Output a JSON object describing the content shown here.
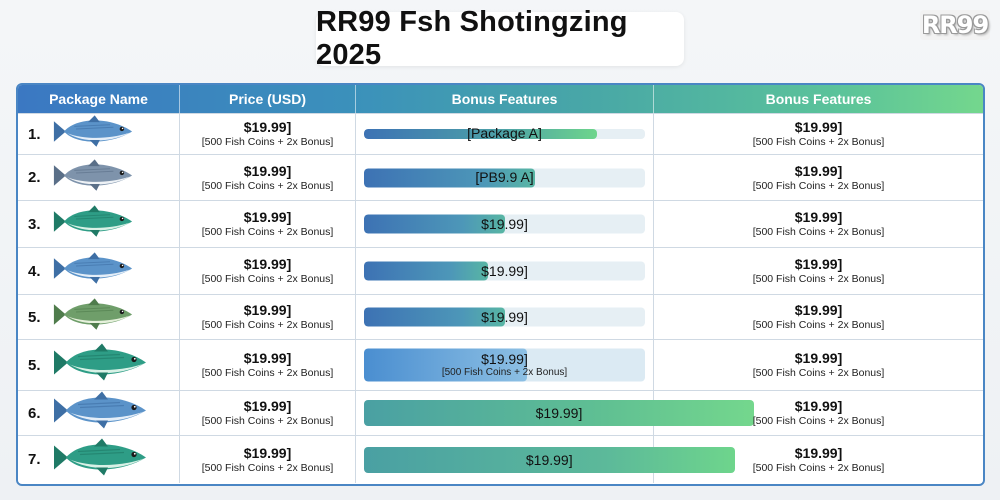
{
  "title": "RR99 Fsh Shotingzing 2025",
  "logo": "RR99",
  "colors": {
    "header_start": "#3b78c2",
    "header_end": "#74d78d",
    "bar_blue": "#3d72b4",
    "bar_teal": "#4aa0a3",
    "bar_green": "#6ed58c"
  },
  "headers": [
    "Package Name",
    "Price (USD)",
    "Bonus Features",
    "Bonus Features"
  ],
  "rows": [
    {
      "num": "1.",
      "fish": "blue-tuna-icon",
      "price": "$19.99]",
      "price_sub": "[500 Fish Coins + 2x Bonus]",
      "bonus_label": "[Package A]",
      "bonus_sub": "",
      "bonus_fill": 0.83,
      "bonus_style": "thin",
      "col4_price": "$19.99]",
      "col4_sub": "[500 Fish Coins + 2x Bonus]"
    },
    {
      "num": "2.",
      "fish": "gray-tuna-icon",
      "price": "$19.99]",
      "price_sub": "[500 Fish Coins + 2x Bonus]",
      "bonus_label": "[PB9.9 A]",
      "bonus_sub": "",
      "bonus_fill": 0.61,
      "bonus_style": "bar",
      "col4_price": "$19.99]",
      "col4_sub": "[500 Fish Coins + 2x Bonus]"
    },
    {
      "num": "3.",
      "fish": "green-mackerel-icon",
      "price": "$19.99]",
      "price_sub": "[500 Fish Coins + 2x Bonus]",
      "bonus_label": "$19.99]",
      "bonus_sub": "",
      "bonus_fill": 0.5,
      "bonus_style": "bar",
      "col4_price": "$19.99]",
      "col4_sub": "[500 Fish Coins + 2x Bonus]"
    },
    {
      "num": "4.",
      "fish": "blue-tuna-icon",
      "price": "$19.99]",
      "price_sub": "[500 Fish Coins + 2x Bonus]",
      "bonus_label": "$19.99]",
      "bonus_sub": "",
      "bonus_fill": 0.44,
      "bonus_style": "bar",
      "col4_price": "$19.99]",
      "col4_sub": "[500 Fish Coins + 2x Bonus]"
    },
    {
      "num": "5.",
      "fish": "olive-mackerel-icon",
      "price": "$19.99]",
      "price_sub": "[500 Fish Coins + 2x Bonus]",
      "bonus_label": "$19.99]",
      "bonus_sub": "",
      "bonus_fill": 0.5,
      "bonus_style": "bar",
      "col4_price": "$19.99]",
      "col4_sub": "[500 Fish Coins + 2x Bonus]"
    },
    {
      "num": "5.",
      "fish": "green-mackerel-icon",
      "price": "$19.99]",
      "price_sub": "[500 Fish Coins + 2x Bonus]",
      "bonus_label": "$19.99]",
      "bonus_sub": "[500 Fish Coins + 2x Bonus]",
      "bonus_fill": 0.58,
      "bonus_style": "tall",
      "col4_price": "$19.99]",
      "col4_sub": "[500 Fish Coins + 2x Bonus]"
    },
    {
      "num": "6.",
      "fish": "blue-tuna-icon",
      "price": "$19.99]",
      "price_sub": "[500 Fish Coins + 2x Bonus]",
      "bonus_label": "$19.99]",
      "bonus_sub": "",
      "bonus_fill": 1.0,
      "bonus_style": "wide",
      "col4_price": "$19.99]",
      "col4_sub": "[500 Fish Coins + 2x Bonus]"
    },
    {
      "num": "7.",
      "fish": "green-mackerel-icon",
      "price": "$19.99]",
      "price_sub": "[500 Fish Coins + 2x Bonus]",
      "bonus_label": "$19.99]",
      "bonus_sub": "",
      "bonus_fill": 0.95,
      "bonus_style": "wide",
      "col4_price": "$19.99]",
      "col4_sub": "[500 Fish Coins + 2x Bonus]"
    }
  ]
}
